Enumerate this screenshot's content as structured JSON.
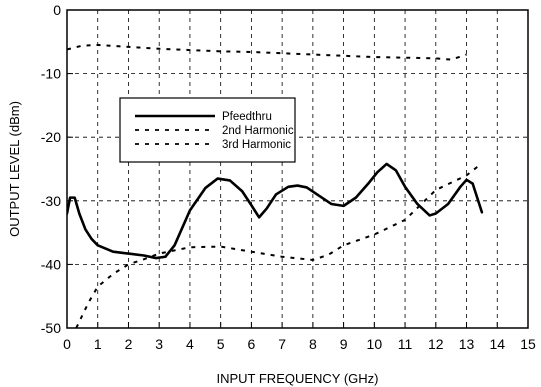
{
  "chart_data": {
    "type": "line",
    "title": "",
    "xlabel": "INPUT  FREQUENCY (GHz)",
    "ylabel": "OUTPUT LEVEL (dBm)",
    "xlim": [
      0,
      15
    ],
    "ylim": [
      -50,
      0
    ],
    "xticks": [
      0,
      1,
      2,
      3,
      4,
      5,
      6,
      7,
      8,
      9,
      10,
      11,
      12,
      13,
      14,
      15
    ],
    "yticks": [
      0,
      -10,
      -20,
      -30,
      -40,
      -50
    ],
    "xtick_labels": [
      "0",
      "1",
      "2",
      "3",
      "4",
      "5",
      "6",
      "7",
      "8",
      "9",
      "10",
      "11",
      "12",
      "13",
      "14",
      "15"
    ],
    "ytick_labels": [
      "0",
      "-10",
      "-20",
      "-30",
      "-40",
      "-50"
    ],
    "grid": true,
    "legend_position": "upper-left-center",
    "series": [
      {
        "name": "Pfeedthru",
        "style": "solid",
        "color": "#000000",
        "x": [
          0,
          0.1,
          0.25,
          0.4,
          0.6,
          0.8,
          1.0,
          1.5,
          2.0,
          2.5,
          2.9,
          3.2,
          3.5,
          4.0,
          4.5,
          4.9,
          5.3,
          5.7,
          6.0,
          6.25,
          6.5,
          6.8,
          7.2,
          7.5,
          7.8,
          8.2,
          8.6,
          9.0,
          9.4,
          9.8,
          10.1,
          10.4,
          10.7,
          11.0,
          11.4,
          11.8,
          12.0,
          12.4,
          12.8,
          13.0,
          13.2,
          13.5
        ],
        "y": [
          -32,
          -29.5,
          -29.5,
          -32,
          -34.5,
          -36,
          -37,
          -38,
          -38.3,
          -38.6,
          -39,
          -38.8,
          -37,
          -31.5,
          -28,
          -26.5,
          -26.8,
          -28.5,
          -30.7,
          -32.6,
          -31.2,
          -29,
          -27.8,
          -27.6,
          -27.9,
          -29.2,
          -30.5,
          -30.8,
          -29.5,
          -27.3,
          -25.5,
          -24.2,
          -25.2,
          -27.8,
          -30.5,
          -32.3,
          -32,
          -30.5,
          -27.8,
          -26.7,
          -27.3,
          -31.8
        ]
      },
      {
        "name": "2nd Harmonic",
        "style": "dashed",
        "color": "#000000",
        "x": [
          0,
          0.5,
          1.0,
          2.0,
          3.0,
          4.0,
          5.0,
          6.0,
          7.0,
          8.0,
          9.0,
          10.0,
          11.0,
          12.0,
          12.5,
          13.0
        ],
        "y": [
          -6.2,
          -5.6,
          -5.5,
          -5.8,
          -6.1,
          -6.3,
          -6.5,
          -6.6,
          -6.8,
          -7.0,
          -7.2,
          -7.4,
          -7.5,
          -7.6,
          -7.8,
          -7.0
        ]
      },
      {
        "name": "3rd Harmonic",
        "style": "dashed",
        "color": "#000000",
        "x": [
          0.3,
          0.7,
          1.0,
          1.5,
          2.0,
          2.5,
          3.0,
          3.5,
          4.0,
          5.0,
          6.0,
          7.0,
          8.0,
          8.5,
          9.0,
          10.0,
          11.0,
          12.0,
          13.0,
          13.5
        ],
        "y": [
          -50,
          -46,
          -43.5,
          -41.5,
          -40,
          -39.2,
          -38.3,
          -37.8,
          -37.3,
          -37.2,
          -38,
          -38.8,
          -39.3,
          -38.5,
          -37,
          -35.3,
          -33,
          -28.3,
          -26,
          -24.1
        ]
      }
    ]
  }
}
